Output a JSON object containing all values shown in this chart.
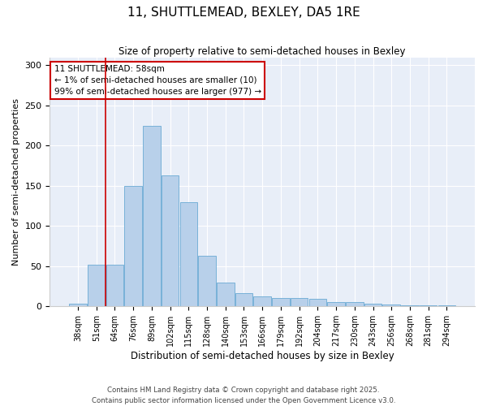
{
  "title": "11, SHUTTLEMEAD, BEXLEY, DA5 1RE",
  "subtitle": "Size of property relative to semi-detached houses in Bexley",
  "xlabel": "Distribution of semi-detached houses by size in Bexley",
  "ylabel": "Number of semi-detached properties",
  "categories": [
    "38sqm",
    "51sqm",
    "64sqm",
    "76sqm",
    "89sqm",
    "102sqm",
    "115sqm",
    "128sqm",
    "140sqm",
    "153sqm",
    "166sqm",
    "179sqm",
    "192sqm",
    "204sqm",
    "217sqm",
    "230sqm",
    "243sqm",
    "256sqm",
    "268sqm",
    "281sqm",
    "294sqm"
  ],
  "values": [
    3,
    52,
    52,
    150,
    225,
    163,
    130,
    63,
    30,
    17,
    12,
    10,
    10,
    9,
    5,
    5,
    3,
    2,
    1,
    1,
    1
  ],
  "bar_color": "#b8d0ea",
  "bar_edge_color": "#6aaad4",
  "vline_x": 1.5,
  "annotation_title": "11 SHUTTLEMEAD: 58sqm",
  "annotation_line1": "← 1% of semi-detached houses are smaller (10)",
  "annotation_line2": "99% of semi-detached houses are larger (977) →",
  "annotation_box_color": "#ffffff",
  "annotation_box_edge": "#cc0000",
  "vline_color": "#cc0000",
  "ylim": [
    0,
    310
  ],
  "yticks": [
    0,
    50,
    100,
    150,
    200,
    250,
    300
  ],
  "background_color": "#e8eef8",
  "footer_line1": "Contains HM Land Registry data © Crown copyright and database right 2025.",
  "footer_line2": "Contains public sector information licensed under the Open Government Licence v3.0."
}
